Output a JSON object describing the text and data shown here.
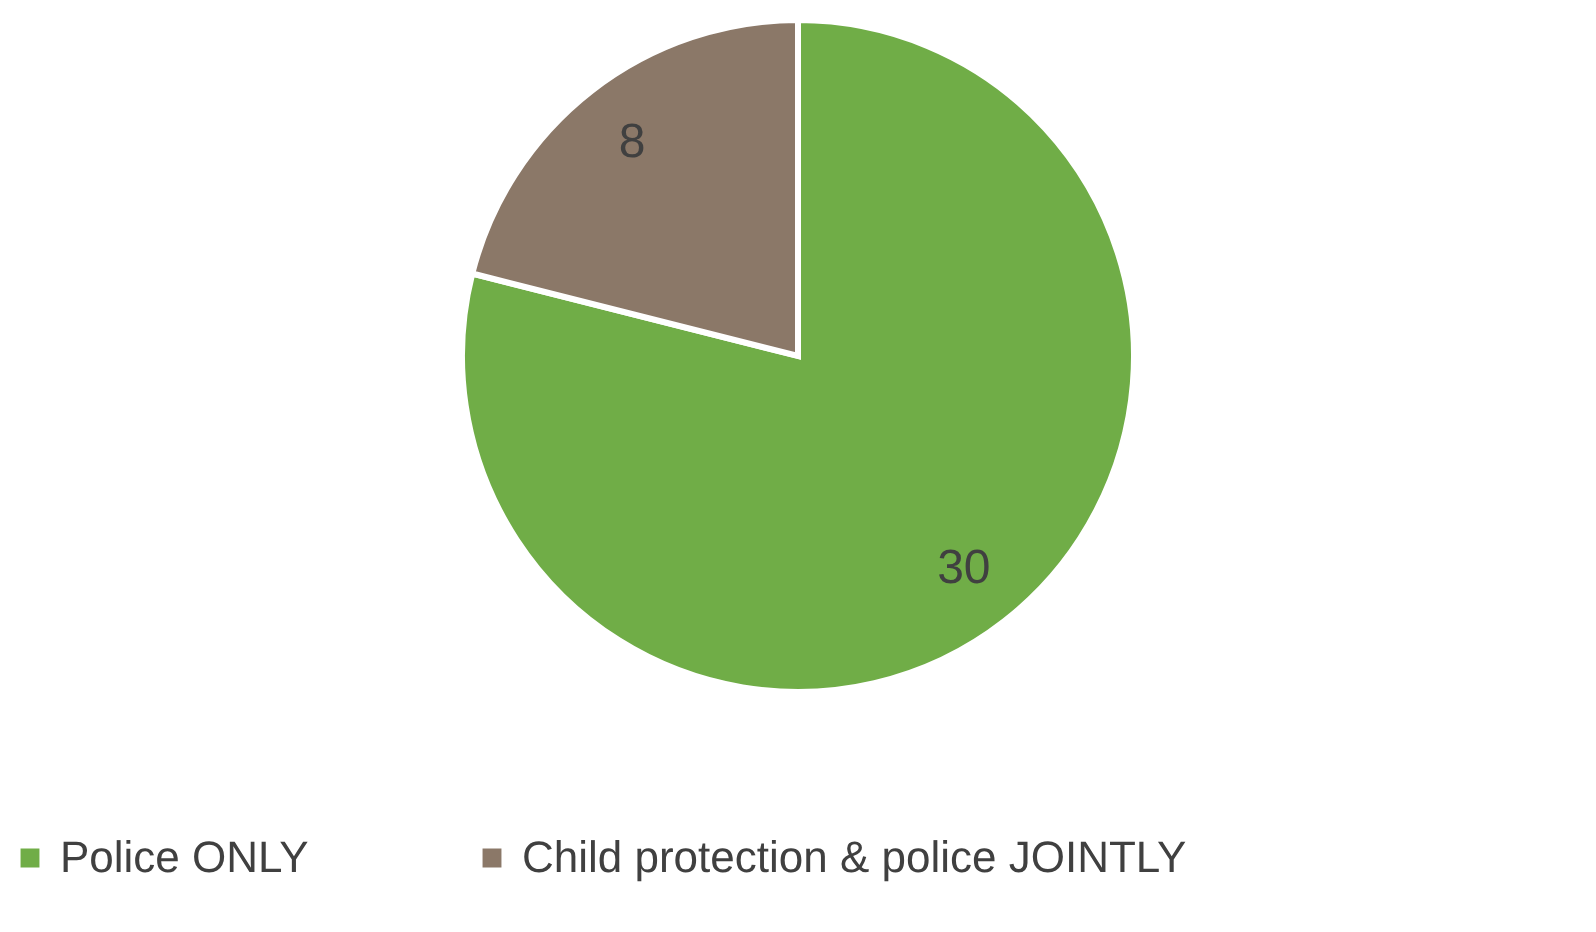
{
  "chart_data": {
    "type": "pie",
    "categories": [
      "Police ONLY",
      "Child protection & police JOINTLY"
    ],
    "values": [
      30,
      8
    ],
    "colors": [
      "#70ad47",
      "#8b7868"
    ],
    "data_labels": true,
    "legend": "bottom"
  }
}
